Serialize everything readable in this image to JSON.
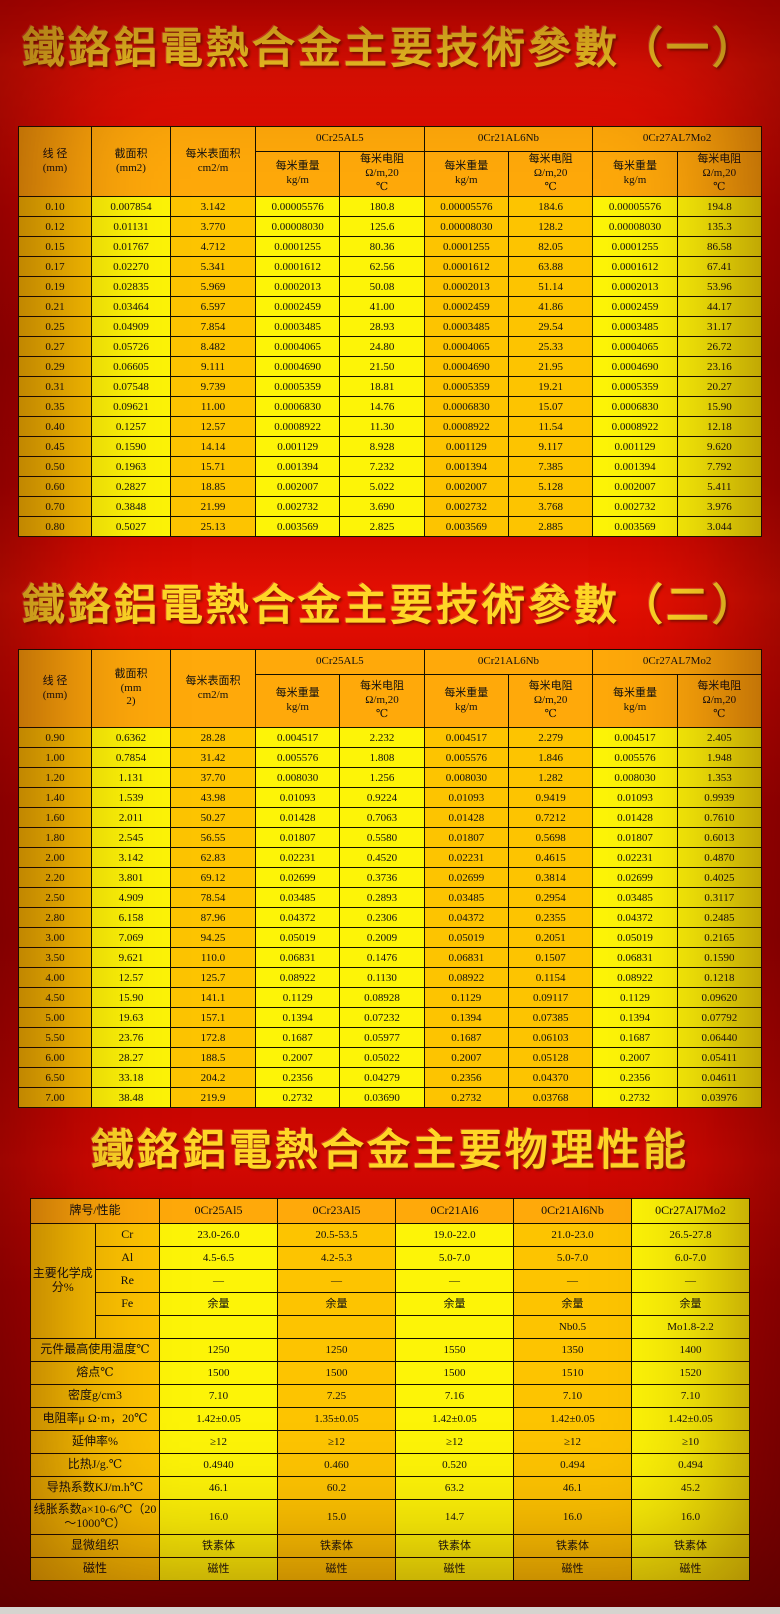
{
  "titles": {
    "table1": "鐵鉻鋁電熱合金主要技術參數（一）",
    "table2": "鐵鉻鋁電熱合金主要技術參數（二）",
    "table3": "鐵鉻鋁電熱合金主要物理性能"
  },
  "colors": {
    "background_red": "#cc0200",
    "title_gold": "#ffd626",
    "header_orange": "#ffa90a",
    "cell_gold": "#fdc400",
    "cell_yellow": "#fdf407",
    "border": "#151000"
  },
  "tech_header": {
    "diameter": "线 径\n(mm)",
    "area_t1": "截面积\n(mm2)",
    "area_t2": "截面积\n(mm\n2)",
    "surface": "每米表面积\ncm2/m",
    "weight": "每米重量\nkg/m",
    "resistance": "每米电阻\nΩ/m,20\n℃",
    "grades": [
      "0Cr25AL5",
      "0Cr21AL6Nb",
      "0Cr27AL7Mo2"
    ]
  },
  "table1_rows": [
    [
      "0.10",
      "0.007854",
      "3.142",
      "0.00005576",
      "180.8",
      "0.00005576",
      "184.6",
      "0.00005576",
      "194.8"
    ],
    [
      "0.12",
      "0.01131",
      "3.770",
      "0.00008030",
      "125.6",
      "0.00008030",
      "128.2",
      "0.00008030",
      "135.3"
    ],
    [
      "0.15",
      "0.01767",
      "4.712",
      "0.0001255",
      "80.36",
      "0.0001255",
      "82.05",
      "0.0001255",
      "86.58"
    ],
    [
      "0.17",
      "0.02270",
      "5.341",
      "0.0001612",
      "62.56",
      "0.0001612",
      "63.88",
      "0.0001612",
      "67.41"
    ],
    [
      "0.19",
      "0.02835",
      "5.969",
      "0.0002013",
      "50.08",
      "0.0002013",
      "51.14",
      "0.0002013",
      "53.96"
    ],
    [
      "0.21",
      "0.03464",
      "6.597",
      "0.0002459",
      "41.00",
      "0.0002459",
      "41.86",
      "0.0002459",
      "44.17"
    ],
    [
      "0.25",
      "0.04909",
      "7.854",
      "0.0003485",
      "28.93",
      "0.0003485",
      "29.54",
      "0.0003485",
      "31.17"
    ],
    [
      "0.27",
      "0.05726",
      "8.482",
      "0.0004065",
      "24.80",
      "0.0004065",
      "25.33",
      "0.0004065",
      "26.72"
    ],
    [
      "0.29",
      "0.06605",
      "9.111",
      "0.0004690",
      "21.50",
      "0.0004690",
      "21.95",
      "0.0004690",
      "23.16"
    ],
    [
      "0.31",
      "0.07548",
      "9.739",
      "0.0005359",
      "18.81",
      "0.0005359",
      "19.21",
      "0.0005359",
      "20.27"
    ],
    [
      "0.35",
      "0.09621",
      "11.00",
      "0.0006830",
      "14.76",
      "0.0006830",
      "15.07",
      "0.0006830",
      "15.90"
    ],
    [
      "0.40",
      "0.1257",
      "12.57",
      "0.0008922",
      "11.30",
      "0.0008922",
      "11.54",
      "0.0008922",
      "12.18"
    ],
    [
      "0.45",
      "0.1590",
      "14.14",
      "0.001129",
      "8.928",
      "0.001129",
      "9.117",
      "0.001129",
      "9.620"
    ],
    [
      "0.50",
      "0.1963",
      "15.71",
      "0.001394",
      "7.232",
      "0.001394",
      "7.385",
      "0.001394",
      "7.792"
    ],
    [
      "0.60",
      "0.2827",
      "18.85",
      "0.002007",
      "5.022",
      "0.002007",
      "5.128",
      "0.002007",
      "5.411"
    ],
    [
      "0.70",
      "0.3848",
      "21.99",
      "0.002732",
      "3.690",
      "0.002732",
      "3.768",
      "0.002732",
      "3.976"
    ],
    [
      "0.80",
      "0.5027",
      "25.13",
      "0.003569",
      "2.825",
      "0.003569",
      "2.885",
      "0.003569",
      "3.044"
    ]
  ],
  "table2_rows": [
    [
      "0.90",
      "0.6362",
      "28.28",
      "0.004517",
      "2.232",
      "0.004517",
      "2.279",
      "0.004517",
      "2.405"
    ],
    [
      "1.00",
      "0.7854",
      "31.42",
      "0.005576",
      "1.808",
      "0.005576",
      "1.846",
      "0.005576",
      "1.948"
    ],
    [
      "1.20",
      "1.131",
      "37.70",
      "0.008030",
      "1.256",
      "0.008030",
      "1.282",
      "0.008030",
      "1.353"
    ],
    [
      "1.40",
      "1.539",
      "43.98",
      "0.01093",
      "0.9224",
      "0.01093",
      "0.9419",
      "0.01093",
      "0.9939"
    ],
    [
      "1.60",
      "2.011",
      "50.27",
      "0.01428",
      "0.7063",
      "0.01428",
      "0.7212",
      "0.01428",
      "0.7610"
    ],
    [
      "1.80",
      "2.545",
      "56.55",
      "0.01807",
      "0.5580",
      "0.01807",
      "0.5698",
      "0.01807",
      "0.6013"
    ],
    [
      "2.00",
      "3.142",
      "62.83",
      "0.02231",
      "0.4520",
      "0.02231",
      "0.4615",
      "0.02231",
      "0.4870"
    ],
    [
      "2.20",
      "3.801",
      "69.12",
      "0.02699",
      "0.3736",
      "0.02699",
      "0.3814",
      "0.02699",
      "0.4025"
    ],
    [
      "2.50",
      "4.909",
      "78.54",
      "0.03485",
      "0.2893",
      "0.03485",
      "0.2954",
      "0.03485",
      "0.3117"
    ],
    [
      "2.80",
      "6.158",
      "87.96",
      "0.04372",
      "0.2306",
      "0.04372",
      "0.2355",
      "0.04372",
      "0.2485"
    ],
    [
      "3.00",
      "7.069",
      "94.25",
      "0.05019",
      "0.2009",
      "0.05019",
      "0.2051",
      "0.05019",
      "0.2165"
    ],
    [
      "3.50",
      "9.621",
      "110.0",
      "0.06831",
      "0.1476",
      "0.06831",
      "0.1507",
      "0.06831",
      "0.1590"
    ],
    [
      "4.00",
      "12.57",
      "125.7",
      "0.08922",
      "0.1130",
      "0.08922",
      "0.1154",
      "0.08922",
      "0.1218"
    ],
    [
      "4.50",
      "15.90",
      "141.1",
      "0.1129",
      "0.08928",
      "0.1129",
      "0.09117",
      "0.1129",
      "0.09620"
    ],
    [
      "5.00",
      "19.63",
      "157.1",
      "0.1394",
      "0.07232",
      "0.1394",
      "0.07385",
      "0.1394",
      "0.07792"
    ],
    [
      "5.50",
      "23.76",
      "172.8",
      "0.1687",
      "0.05977",
      "0.1687",
      "0.06103",
      "0.1687",
      "0.06440"
    ],
    [
      "6.00",
      "28.27",
      "188.5",
      "0.2007",
      "0.05022",
      "0.2007",
      "0.05128",
      "0.2007",
      "0.05411"
    ],
    [
      "6.50",
      "33.18",
      "204.2",
      "0.2356",
      "0.04279",
      "0.2356",
      "0.04370",
      "0.2356",
      "0.04611"
    ],
    [
      "7.00",
      "38.48",
      "219.9",
      "0.2732",
      "0.03690",
      "0.2732",
      "0.03768",
      "0.2732",
      "0.03976"
    ]
  ],
  "physical": {
    "header_label": "牌号/性能",
    "grades": [
      "0Cr25Al5",
      "0Cr23Al5",
      "0Cr21Al6",
      "0Cr21Al6Nb",
      "0Cr27Al7Mo2"
    ],
    "chem_label": "主要化学成分%",
    "chem_rows": [
      {
        "element": "Cr",
        "values": [
          "23.0-26.0",
          "20.5-53.5",
          "19.0-22.0",
          "21.0-23.0",
          "26.5-27.8"
        ]
      },
      {
        "element": "Al",
        "values": [
          "4.5-6.5",
          "4.2-5.3",
          "5.0-7.0",
          "5.0-7.0",
          "6.0-7.0"
        ]
      },
      {
        "element": "Re",
        "values": [
          "—",
          "—",
          "—",
          "—",
          "—"
        ]
      },
      {
        "element": "Fe",
        "values": [
          "余量",
          "余量",
          "余量",
          "余量",
          "余量"
        ]
      },
      {
        "element": "",
        "values": [
          "",
          "",
          "",
          "Nb0.5",
          "Mo1.8-2.2"
        ]
      }
    ],
    "property_rows": [
      {
        "label": "元件最高使用温度℃",
        "values": [
          "1250",
          "1250",
          "1550",
          "1350",
          "1400"
        ]
      },
      {
        "label": "熔点℃",
        "values": [
          "1500",
          "1500",
          "1500",
          "1510",
          "1520"
        ]
      },
      {
        "label": "密度g/cm3",
        "values": [
          "7.10",
          "7.25",
          "7.16",
          "7.10",
          "7.10"
        ]
      },
      {
        "label": "电阻率μ Ω·m，20℃",
        "values": [
          "1.42±0.05",
          "1.35±0.05",
          "1.42±0.05",
          "1.42±0.05",
          "1.42±0.05"
        ]
      },
      {
        "label": "延伸率%",
        "values": [
          "≥12",
          "≥12",
          "≥12",
          "≥12",
          "≥10"
        ]
      },
      {
        "label": "比热J/g.℃",
        "values": [
          "0.4940",
          "0.460",
          "0.520",
          "0.494",
          "0.494"
        ]
      },
      {
        "label": "导热系数KJ/m.h℃",
        "values": [
          "46.1",
          "60.2",
          "63.2",
          "46.1",
          "45.2"
        ]
      },
      {
        "label": "线胀系数a×10-6/℃（20～1000℃）",
        "values": [
          "16.0",
          "15.0",
          "14.7",
          "16.0",
          "16.0"
        ],
        "tall": true
      },
      {
        "label": "显微组织",
        "values": [
          "铁素体",
          "铁素体",
          "铁素体",
          "铁素体",
          "铁素体"
        ]
      },
      {
        "label": "磁性",
        "values": [
          "磁性",
          "磁性",
          "磁性",
          "磁性",
          "磁性"
        ]
      }
    ]
  }
}
